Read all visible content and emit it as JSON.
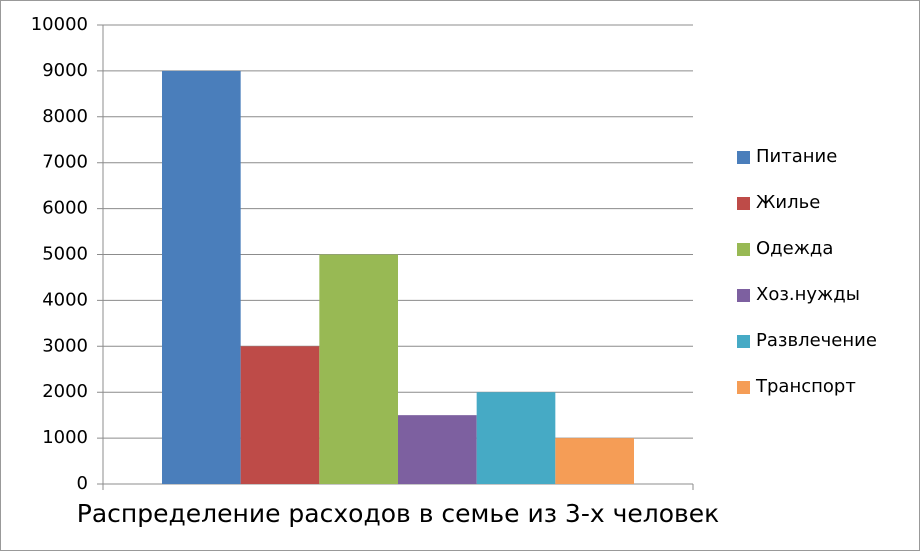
{
  "chart_data": {
    "type": "bar",
    "categories": [
      "Распределение расходов в семье из 3-х человек"
    ],
    "series": [
      {
        "name": "Питание",
        "color": "#4a7ebb",
        "values": [
          9000
        ]
      },
      {
        "name": "Жилье",
        "color": "#be4b48",
        "values": [
          3000
        ]
      },
      {
        "name": "Одежда",
        "color": "#98b954",
        "values": [
          5000
        ]
      },
      {
        "name": "Хоз.нужды",
        "color": "#7d60a0",
        "values": [
          1500
        ]
      },
      {
        "name": "Развлечение",
        "color": "#46aac5",
        "values": [
          2000
        ]
      },
      {
        "name": "Транспорт",
        "color": "#f59d56",
        "values": [
          1000
        ]
      }
    ],
    "ylim": [
      0,
      10000
    ],
    "yticks": [
      0,
      1000,
      2000,
      3000,
      4000,
      5000,
      6000,
      7000,
      8000,
      9000,
      10000
    ],
    "grid": true,
    "legend": "right"
  }
}
